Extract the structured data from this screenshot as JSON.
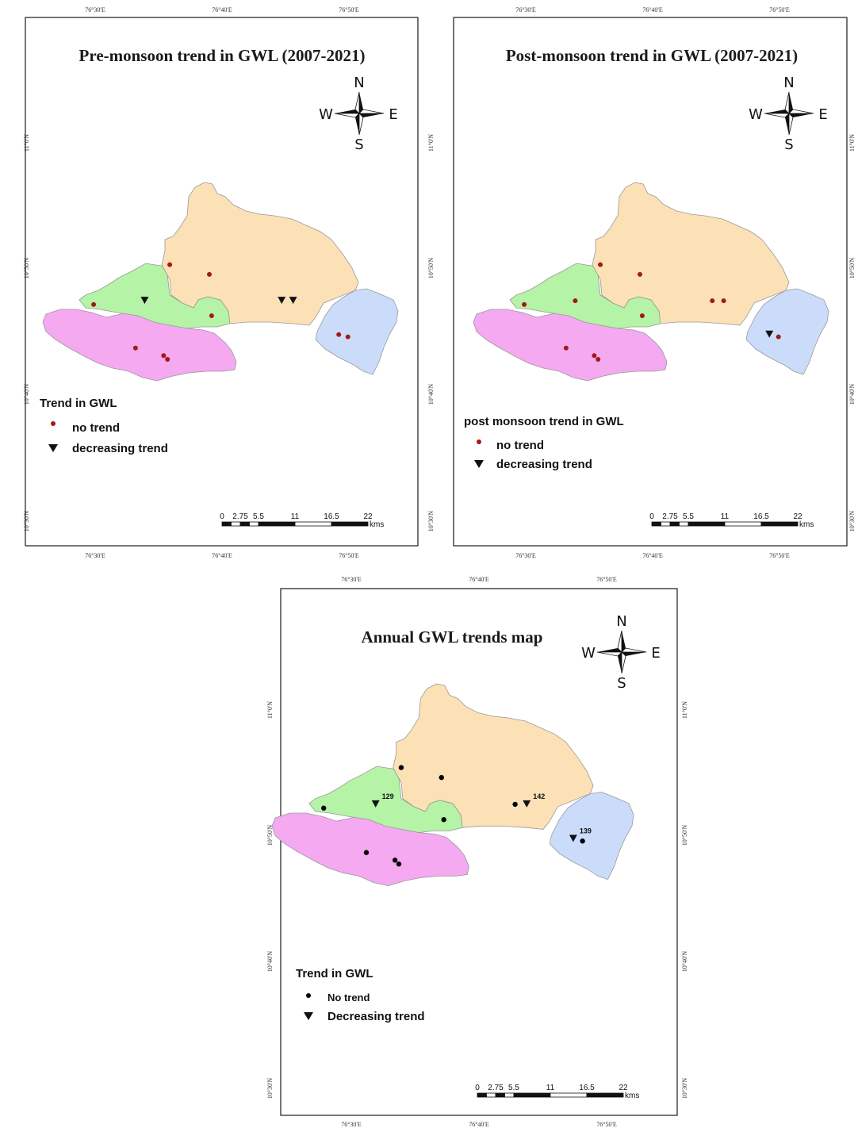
{
  "colors": {
    "district_north": "#fce1b6",
    "district_west": "#b5f3a6",
    "district_south": "#f4a9f1",
    "district_east": "#cbdcfb",
    "boundary": "#999999",
    "pre_marker": "#a11a1a",
    "post_marker": "#a11a1a",
    "annual_marker": "#000000",
    "frame": "#1a1a1a"
  },
  "ticks": {
    "lon": [
      "76°30'E",
      "76°40'E",
      "76°50'E"
    ],
    "lat": [
      "11°0'N",
      "10°50'N",
      "10°40'N",
      "10°30'N"
    ]
  },
  "scale_bar": {
    "labels": [
      "0",
      "2.75",
      "5.5",
      "11",
      "16.5",
      "22"
    ],
    "unit": "kms"
  },
  "compass": {
    "n": "N",
    "s": "S",
    "e": "E",
    "w": "W",
    "icon": "north-arrow-icon"
  },
  "maps": {
    "pre": {
      "title": "Pre-monsoon trend in GWL (2007-2021)",
      "legend_title": "Trend in GWL",
      "legend": [
        "no trend",
        "decreasing trend"
      ]
    },
    "post": {
      "title": "Post-monsoon trend in GWL (2007-2021)",
      "legend_title": "post monsoon trend in GWL",
      "legend": [
        "no trend",
        "decreasing trend"
      ]
    },
    "annual": {
      "title": "Annual GWL trends map",
      "legend_title": "Trend in GWL",
      "legend": [
        "No trend",
        "Decreasing trend"
      ],
      "station_labels": [
        "129",
        "142",
        "139"
      ]
    }
  },
  "stations": [
    {
      "lon": 76.498,
      "lat": 10.785,
      "pre": "none",
      "post": "none",
      "annual": "none"
    },
    {
      "lon": 76.565,
      "lat": 10.79,
      "pre": "decreasing",
      "post": "none",
      "annual": "decreasing",
      "label": "129"
    },
    {
      "lon": 76.598,
      "lat": 10.838,
      "pre": "none",
      "post": "none",
      "annual": "none"
    },
    {
      "lon": 76.65,
      "lat": 10.825,
      "pre": "none",
      "post": "none",
      "annual": "none"
    },
    {
      "lon": 76.653,
      "lat": 10.77,
      "pre": "none",
      "post": "none",
      "annual": "none"
    },
    {
      "lon": 76.745,
      "lat": 10.79,
      "pre": "decreasing",
      "post": "none",
      "annual": "none"
    },
    {
      "lon": 76.76,
      "lat": 10.79,
      "pre": "decreasing",
      "post": "none",
      "annual": "decreasing",
      "label": "142"
    },
    {
      "lon": 76.553,
      "lat": 10.727,
      "pre": "none",
      "post": "none",
      "annual": "none"
    },
    {
      "lon": 76.59,
      "lat": 10.717,
      "pre": "none",
      "post": "none",
      "annual": "none"
    },
    {
      "lon": 76.595,
      "lat": 10.712,
      "pre": "none",
      "post": "none",
      "annual": "none"
    },
    {
      "lon": 76.82,
      "lat": 10.745,
      "pre": "none",
      "post": "decreasing",
      "annual": "decreasing",
      "label": "139"
    },
    {
      "lon": 76.832,
      "lat": 10.742,
      "pre": "none",
      "post": "none",
      "annual": "none"
    }
  ]
}
